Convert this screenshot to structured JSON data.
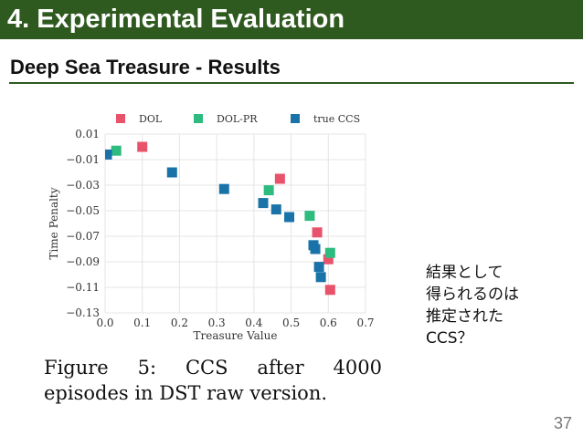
{
  "slide": {
    "title": "4. Experimental Evaluation",
    "subtitle": "Deep Sea Treasure - Results",
    "page_number": "37",
    "colors": {
      "title_bar": "#2f5a1f",
      "accent_rule": "#2f5a1f"
    }
  },
  "caption": {
    "words_line1": [
      "Figure",
      "5:",
      "CCS",
      "after",
      "4000"
    ],
    "line2": "episodes in DST raw version."
  },
  "note": {
    "lines": [
      "結果として",
      "得られるのは",
      "推定された",
      "CCS？"
    ]
  },
  "chart_data": {
    "type": "scatter",
    "title": "",
    "xlabel": "Treasure Value",
    "ylabel": "Time Penalty",
    "xlim": [
      0.0,
      0.7
    ],
    "ylim": [
      -0.13,
      0.01
    ],
    "xticks": [
      "0.0",
      "0.1",
      "0.2",
      "0.3",
      "0.4",
      "0.5",
      "0.6",
      "0.7"
    ],
    "yticks": [
      "0.01",
      "−0.01",
      "−0.03",
      "−0.05",
      "−0.07",
      "−0.09",
      "−0.11",
      "−0.13"
    ],
    "grid": true,
    "legend_position": "top",
    "series": [
      {
        "name": "DOL",
        "color": "#e8526a",
        "points": [
          [
            0.1,
            0.0
          ],
          [
            0.47,
            -0.025
          ],
          [
            0.57,
            -0.067
          ],
          [
            0.6,
            -0.088
          ],
          [
            0.605,
            -0.112
          ]
        ]
      },
      {
        "name": "DOL-PR",
        "color": "#2dbb80",
        "points": [
          [
            0.03,
            -0.003
          ],
          [
            0.44,
            -0.034
          ],
          [
            0.55,
            -0.054
          ],
          [
            0.605,
            -0.083
          ]
        ]
      },
      {
        "name": "true CCS",
        "color": "#1a73a8",
        "points": [
          [
            0.005,
            -0.006
          ],
          [
            0.18,
            -0.02
          ],
          [
            0.32,
            -0.033
          ],
          [
            0.425,
            -0.044
          ],
          [
            0.46,
            -0.049
          ],
          [
            0.495,
            -0.055
          ],
          [
            0.56,
            -0.077
          ],
          [
            0.565,
            -0.08
          ],
          [
            0.575,
            -0.094
          ],
          [
            0.58,
            -0.102
          ]
        ]
      }
    ]
  }
}
